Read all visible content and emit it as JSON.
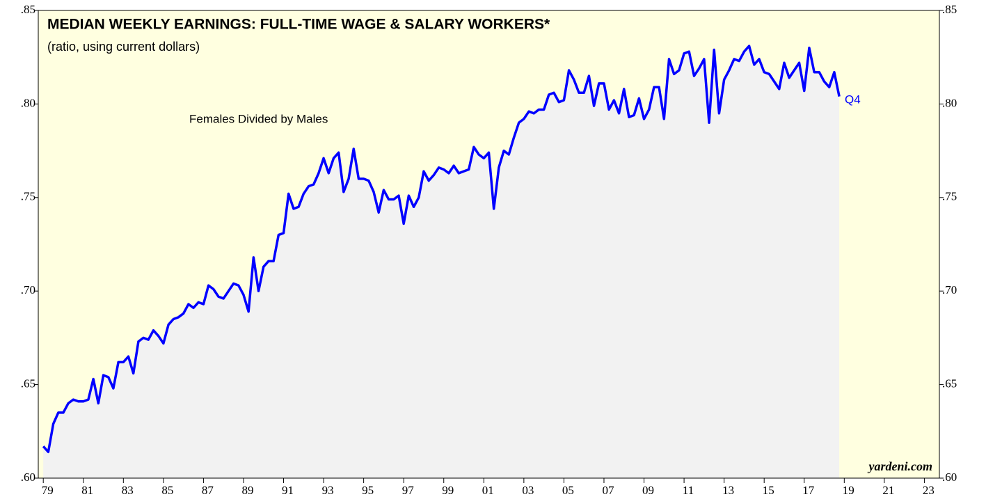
{
  "chart_data": {
    "type": "line",
    "title": "MEDIAN WEEKLY EARNINGS: FULL-TIME WAGE & SALARY WORKERS*",
    "subtitle": "(ratio, using current dollars)",
    "annotations": [
      "Females Divided by Males",
      "Q4",
      "yardeni.com"
    ],
    "x": [
      1979,
      1979.25,
      1979.5,
      1979.75,
      1980,
      1980.25,
      1980.5,
      1980.75,
      1981,
      1981.25,
      1981.5,
      1981.75,
      1982,
      1982.25,
      1982.5,
      1982.75,
      1983,
      1983.25,
      1983.5,
      1983.75,
      1984,
      1984.25,
      1984.5,
      1984.75,
      1985,
      1985.25,
      1985.5,
      1985.75,
      1986,
      1986.25,
      1986.5,
      1986.75,
      1987,
      1987.25,
      1987.5,
      1987.75,
      1988,
      1988.25,
      1988.5,
      1988.75,
      1989,
      1989.25,
      1989.5,
      1989.75,
      1990,
      1990.25,
      1990.5,
      1990.75,
      1991,
      1991.25,
      1991.5,
      1991.75,
      1992,
      1992.25,
      1992.5,
      1992.75,
      1993,
      1993.25,
      1993.5,
      1993.75,
      1994,
      1994.25,
      1994.5,
      1994.75,
      1995,
      1995.25,
      1995.5,
      1995.75,
      1996,
      1996.25,
      1996.5,
      1996.75,
      1997,
      1997.25,
      1997.5,
      1997.75,
      1998,
      1998.25,
      1998.5,
      1998.75,
      1999,
      1999.25,
      1999.5,
      1999.75,
      2000,
      2000.25,
      2000.5,
      2000.75,
      2001,
      2001.25,
      2001.5,
      2001.75,
      2002,
      2002.25,
      2002.5,
      2002.75,
      2003,
      2003.25,
      2003.5,
      2003.75,
      2004,
      2004.25,
      2004.5,
      2004.75,
      2005,
      2005.25,
      2005.5,
      2005.75,
      2006,
      2006.25,
      2006.5,
      2006.75,
      2007,
      2007.25,
      2007.5,
      2007.75,
      2008,
      2008.25,
      2008.5,
      2008.75,
      2009,
      2009.25,
      2009.5,
      2009.75,
      2010,
      2010.25,
      2010.5,
      2010.75,
      2011,
      2011.25,
      2011.5,
      2011.75,
      2012,
      2012.25,
      2012.5,
      2012.75,
      2013,
      2013.25,
      2013.5,
      2013.75,
      2014,
      2014.25,
      2014.5,
      2014.75,
      2015,
      2015.25,
      2015.5,
      2015.75,
      2016,
      2016.25,
      2016.5,
      2016.75,
      2017,
      2017.25,
      2017.5,
      2017.75,
      2018,
      2018.25,
      2018.5,
      2018.75
    ],
    "series": [
      {
        "name": "Females Divided by Males",
        "color": "#0000ff",
        "values": [
          0.617,
          0.614,
          0.629,
          0.635,
          0.635,
          0.64,
          0.642,
          0.641,
          0.641,
          0.642,
          0.653,
          0.64,
          0.655,
          0.654,
          0.648,
          0.662,
          0.662,
          0.665,
          0.656,
          0.673,
          0.675,
          0.674,
          0.679,
          0.676,
          0.672,
          0.682,
          0.685,
          0.686,
          0.688,
          0.693,
          0.691,
          0.694,
          0.693,
          0.703,
          0.701,
          0.697,
          0.696,
          0.7,
          0.704,
          0.703,
          0.698,
          0.689,
          0.718,
          0.7,
          0.713,
          0.716,
          0.716,
          0.73,
          0.731,
          0.752,
          0.744,
          0.745,
          0.752,
          0.756,
          0.757,
          0.763,
          0.771,
          0.763,
          0.771,
          0.774,
          0.753,
          0.76,
          0.776,
          0.76,
          0.76,
          0.759,
          0.753,
          0.742,
          0.754,
          0.749,
          0.749,
          0.751,
          0.736,
          0.751,
          0.745,
          0.75,
          0.764,
          0.759,
          0.762,
          0.766,
          0.765,
          0.763,
          0.767,
          0.763,
          0.764,
          0.765,
          0.777,
          0.773,
          0.771,
          0.774,
          0.744,
          0.766,
          0.775,
          0.773,
          0.782,
          0.79,
          0.792,
          0.796,
          0.795,
          0.797,
          0.797,
          0.805,
          0.806,
          0.801,
          0.802,
          0.818,
          0.813,
          0.806,
          0.806,
          0.815,
          0.799,
          0.811,
          0.811,
          0.797,
          0.802,
          0.795,
          0.808,
          0.793,
          0.794,
          0.803,
          0.792,
          0.797,
          0.809,
          0.809,
          0.792,
          0.824,
          0.816,
          0.818,
          0.827,
          0.828,
          0.815,
          0.819,
          0.824,
          0.79,
          0.829,
          0.795,
          0.813,
          0.818,
          0.824,
          0.823,
          0.828,
          0.831,
          0.821,
          0.824,
          0.817,
          0.816,
          0.812,
          0.808,
          0.822,
          0.814,
          0.818,
          0.822,
          0.807,
          0.83,
          0.817,
          0.817,
          0.812,
          0.809,
          0.817,
          0.804
        ]
      }
    ],
    "area_color": "#f2f2f2",
    "background": "#ffffe0",
    "xlim": [
      1978.75,
      2023.75
    ],
    "xticks": [
      {
        "value": 1979,
        "label": "79"
      },
      {
        "value": 1981,
        "label": "81"
      },
      {
        "value": 1983,
        "label": "83"
      },
      {
        "value": 1985,
        "label": "85"
      },
      {
        "value": 1987,
        "label": "87"
      },
      {
        "value": 1989,
        "label": "89"
      },
      {
        "value": 1991,
        "label": "91"
      },
      {
        "value": 1993,
        "label": "93"
      },
      {
        "value": 1995,
        "label": "95"
      },
      {
        "value": 1997,
        "label": "97"
      },
      {
        "value": 1999,
        "label": "99"
      },
      {
        "value": 2001,
        "label": "01"
      },
      {
        "value": 2003,
        "label": "03"
      },
      {
        "value": 2005,
        "label": "05"
      },
      {
        "value": 2007,
        "label": "07"
      },
      {
        "value": 2009,
        "label": "09"
      },
      {
        "value": 2011,
        "label": "11"
      },
      {
        "value": 2013,
        "label": "13"
      },
      {
        "value": 2015,
        "label": "15"
      },
      {
        "value": 2017,
        "label": "17"
      },
      {
        "value": 2019,
        "label": "19"
      },
      {
        "value": 2021,
        "label": "21"
      },
      {
        "value": 2023,
        "label": "23"
      }
    ],
    "ylim": [
      0.6,
      0.85
    ],
    "yticks": [
      {
        "value": 0.6,
        "label": ".60"
      },
      {
        "value": 0.65,
        "label": ".65"
      },
      {
        "value": 0.7,
        "label": ".70"
      },
      {
        "value": 0.75,
        "label": ".75"
      },
      {
        "value": 0.8,
        "label": ".80"
      },
      {
        "value": 0.85,
        "label": ".85"
      }
    ],
    "grid": false
  }
}
